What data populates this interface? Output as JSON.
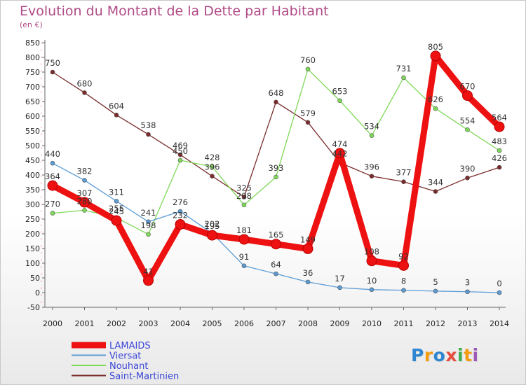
{
  "title": "Evolution du Montant de la Dette par Habitant",
  "unit_label": "(en €)",
  "logo": {
    "text": "Proxiti",
    "colors": [
      "#2e86d1",
      "#f39c12",
      "#2e86d1",
      "#e84c3d",
      "#3cae4b",
      "#f39c12",
      "#9b59b6"
    ]
  },
  "chart_data": {
    "type": "line",
    "title": "Evolution du Montant de la Dette par Habitant",
    "ylabel": "(en €)",
    "xlabel": "",
    "x": [
      "2000",
      "2001",
      "2002",
      "2003",
      "2004",
      "2005",
      "2006",
      "2007",
      "2008",
      "2009",
      "2010",
      "2011",
      "2012",
      "2013",
      "2014"
    ],
    "ylim": [
      -50,
      850
    ],
    "yticks": [
      -50,
      0,
      50,
      100,
      150,
      200,
      250,
      300,
      350,
      400,
      450,
      500,
      550,
      600,
      650,
      700,
      750,
      800,
      850
    ],
    "grid": false,
    "legend_position": "bottom-left",
    "series": [
      {
        "name": "LAMAIDS",
        "color": "#ee1111",
        "values": [
          364,
          307,
          245,
          41,
          232,
          195,
          181,
          165,
          149,
          474,
          108,
          92,
          805,
          670,
          564
        ]
      },
      {
        "name": "Viersat",
        "color": "#5b9bd5",
        "values": [
          440,
          382,
          311,
          241,
          276,
          202,
          91,
          64,
          36,
          17,
          10,
          8,
          5,
          3,
          0
        ]
      },
      {
        "name": "Nouhant",
        "color": "#7ed957",
        "values": [
          270,
          280,
          255,
          198,
          450,
          428,
          298,
          393,
          760,
          653,
          534,
          731,
          626,
          554,
          483
        ]
      },
      {
        "name": "Saint-Martinien",
        "color": "#7a2a2a",
        "values": [
          750,
          680,
          604,
          538,
          469,
          396,
          325,
          648,
          579,
          442,
          396,
          377,
          344,
          390,
          426
        ]
      }
    ]
  }
}
